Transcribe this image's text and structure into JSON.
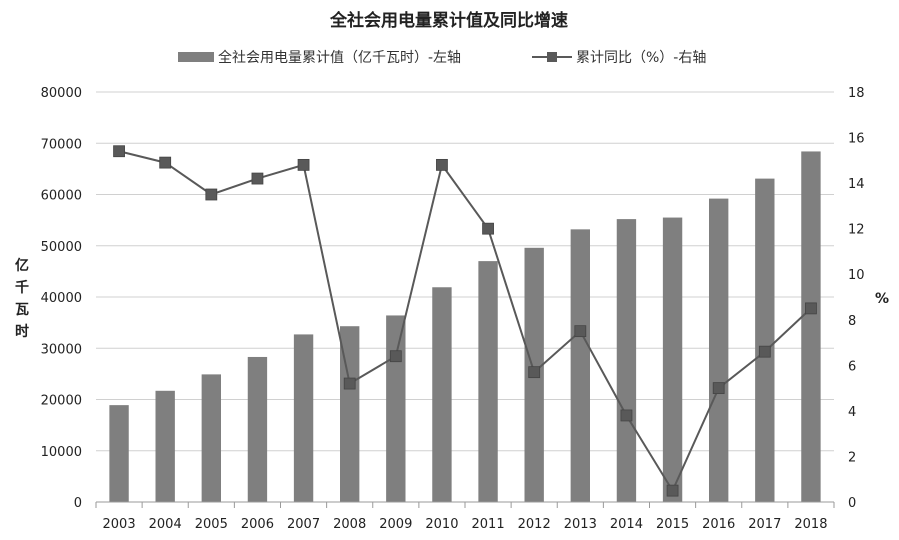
{
  "chart_data": {
    "type": "bar",
    "title": "全社会用电量累计值及同比增速",
    "categories": [
      "2003",
      "2004",
      "2005",
      "2006",
      "2007",
      "2008",
      "2009",
      "2010",
      "2011",
      "2012",
      "2013",
      "2014",
      "2015",
      "2016",
      "2017",
      "2018"
    ],
    "series": [
      {
        "name": "全社会用电量累计值（亿千瓦时）-左轴",
        "type": "bar",
        "axis": "left",
        "color": "#7f7f7f",
        "values": [
          18900,
          21700,
          24900,
          28300,
          32700,
          34300,
          36400,
          41900,
          47000,
          49600,
          53200,
          55200,
          55500,
          59200,
          63100,
          68400
        ]
      },
      {
        "name": "累计同比（%）-右轴",
        "type": "line",
        "axis": "right",
        "color": "#595959",
        "values": [
          15.4,
          14.9,
          13.5,
          14.2,
          14.8,
          5.2,
          6.4,
          14.8,
          12.0,
          5.7,
          7.5,
          3.8,
          0.5,
          5.0,
          6.6,
          8.5
        ]
      }
    ],
    "ylabel": "亿千瓦时",
    "y2label": "%",
    "ylim": [
      0,
      80000
    ],
    "y2lim": [
      0,
      18
    ],
    "yticks": [
      "0",
      "10000",
      "20000",
      "30000",
      "40000",
      "50000",
      "60000",
      "70000",
      "80000"
    ],
    "y2ticks": [
      "0",
      "2",
      "4",
      "6",
      "8",
      "10",
      "12",
      "14",
      "16",
      "18"
    ],
    "grid": true,
    "legend_position": "top-center"
  }
}
